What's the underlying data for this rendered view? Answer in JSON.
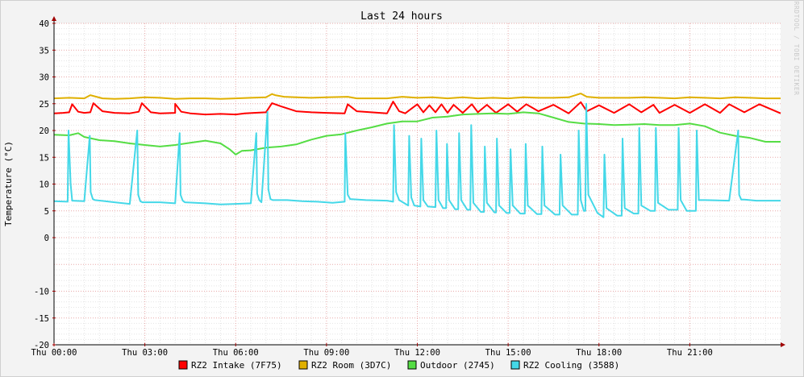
{
  "chart_data": {
    "type": "line",
    "title": "Last 24 hours",
    "ylabel": "Temperature (°C)",
    "xlabel": "",
    "watermark": "RRDTOOL / TOBI OETIKER",
    "ylim": [
      -20,
      40
    ],
    "y_ticks": [
      "40",
      "35",
      "30",
      "25",
      "20",
      "15",
      "10",
      "5",
      "0",
      "-10",
      "-15",
      "-20"
    ],
    "y_tick_values": [
      40,
      35,
      30,
      25,
      20,
      15,
      10,
      5,
      0,
      -10,
      -15,
      -20
    ],
    "x_unit": "hours since Thu 00:00",
    "xlim": [
      0,
      24
    ],
    "x_ticks": [
      "Thu 00:00",
      "Thu 03:00",
      "Thu 06:00",
      "Thu 09:00",
      "Thu 12:00",
      "Thu 15:00",
      "Thu 18:00",
      "Thu 21:00"
    ],
    "x_tick_values": [
      0,
      3,
      6,
      9,
      12,
      15,
      18,
      21
    ],
    "grid": true,
    "legend_position": "bottom",
    "series": [
      {
        "name": "RZ2 Intake (7F75)",
        "color": "#ff0000",
        "x": [
          0.0,
          0.3,
          0.5,
          0.6,
          0.8,
          1.0,
          1.2,
          1.3,
          1.6,
          2.0,
          2.5,
          2.8,
          2.9,
          3.2,
          3.5,
          4.0,
          4.0,
          4.2,
          4.5,
          5.0,
          5.5,
          6.0,
          6.3,
          6.6,
          7.0,
          7.2,
          7.5,
          8.0,
          8.5,
          9.0,
          9.6,
          9.7,
          10.0,
          11.0,
          11.2,
          11.4,
          11.6,
          12.0,
          12.2,
          12.4,
          12.6,
          12.8,
          13.0,
          13.2,
          13.5,
          13.8,
          14.0,
          14.3,
          14.6,
          15.0,
          15.3,
          15.6,
          16.0,
          16.5,
          17.0,
          17.4,
          17.6,
          18.0,
          18.5,
          19.0,
          19.4,
          19.8,
          20.0,
          20.5,
          21.0,
          21.5,
          22.0,
          22.3,
          22.8,
          23.3,
          24.0
        ],
        "y": [
          23.2,
          23.3,
          23.4,
          24.9,
          23.5,
          23.3,
          23.4,
          25.1,
          23.6,
          23.3,
          23.2,
          23.5,
          25.1,
          23.4,
          23.2,
          23.3,
          25.0,
          23.5,
          23.2,
          23.0,
          23.1,
          23.0,
          23.2,
          23.3,
          23.4,
          25.1,
          24.5,
          23.6,
          23.4,
          23.3,
          23.2,
          24.9,
          23.6,
          23.2,
          25.4,
          23.6,
          23.2,
          24.9,
          23.4,
          24.7,
          23.4,
          24.9,
          23.3,
          24.8,
          23.3,
          24.9,
          23.4,
          24.8,
          23.3,
          24.9,
          23.5,
          24.9,
          23.6,
          24.8,
          23.2,
          25.3,
          23.6,
          24.7,
          23.3,
          24.9,
          23.4,
          24.8,
          23.3,
          24.8,
          23.3,
          24.9,
          23.3,
          24.9,
          23.4,
          24.9,
          23.2
        ]
      },
      {
        "name": "RZ2 Room (3D7C)",
        "color": "#e0b000",
        "x": [
          0.0,
          0.5,
          1.0,
          1.2,
          1.6,
          2.0,
          2.5,
          3.0,
          3.5,
          4.0,
          4.5,
          5.0,
          5.5,
          6.0,
          6.5,
          7.0,
          7.2,
          7.3,
          7.6,
          8.0,
          8.5,
          9.0,
          9.7,
          10.0,
          11.0,
          11.5,
          12.0,
          12.5,
          13.0,
          13.5,
          14.0,
          14.5,
          15.0,
          15.5,
          16.0,
          16.5,
          17.0,
          17.4,
          17.6,
          18.0,
          18.5,
          19.0,
          19.5,
          20.0,
          20.5,
          21.0,
          21.5,
          22.0,
          22.5,
          23.0,
          23.5,
          24.0
        ],
        "y": [
          26.0,
          26.1,
          26.0,
          26.6,
          26.0,
          25.9,
          26.0,
          26.2,
          26.1,
          25.9,
          26.0,
          26.0,
          25.9,
          26.0,
          26.1,
          26.2,
          26.8,
          26.6,
          26.3,
          26.2,
          26.1,
          26.2,
          26.3,
          26.0,
          26.0,
          26.3,
          26.1,
          26.2,
          26.0,
          26.2,
          26.0,
          26.1,
          26.0,
          26.2,
          26.1,
          26.1,
          26.2,
          26.9,
          26.3,
          26.1,
          26.1,
          26.1,
          26.2,
          26.1,
          26.0,
          26.2,
          26.1,
          26.0,
          26.2,
          26.1,
          26.0,
          26.0
        ]
      },
      {
        "name": "Outdoor (2745)",
        "color": "#55dd44",
        "x": [
          0.0,
          0.5,
          0.8,
          1.0,
          1.5,
          2.0,
          2.5,
          3.0,
          3.5,
          4.0,
          4.5,
          5.0,
          5.5,
          5.8,
          6.0,
          6.2,
          6.5,
          6.8,
          7.0,
          7.5,
          8.0,
          8.5,
          9.0,
          9.5,
          10.0,
          10.5,
          11.0,
          11.5,
          12.0,
          12.5,
          13.0,
          13.5,
          14.0,
          14.5,
          15.0,
          15.5,
          16.0,
          16.5,
          17.0,
          17.5,
          18.0,
          18.5,
          19.0,
          19.5,
          20.0,
          20.5,
          21.0,
          21.5,
          22.0,
          22.5,
          23.0,
          23.5,
          24.0
        ],
        "y": [
          19.2,
          19.1,
          19.5,
          18.8,
          18.2,
          18.0,
          17.6,
          17.3,
          17.0,
          17.3,
          17.7,
          18.1,
          17.6,
          16.5,
          15.5,
          16.2,
          16.3,
          16.6,
          16.8,
          17.0,
          17.4,
          18.3,
          19.0,
          19.3,
          20.0,
          20.6,
          21.3,
          21.7,
          21.7,
          22.4,
          22.6,
          23.0,
          23.1,
          23.2,
          23.1,
          23.4,
          23.2,
          22.4,
          21.6,
          21.3,
          21.2,
          21.0,
          21.1,
          21.2,
          21.0,
          21.0,
          21.3,
          20.8,
          19.6,
          19.0,
          18.6,
          17.9,
          17.9
        ]
      },
      {
        "name": "RZ2 Cooling (3588)",
        "color": "#44d8e8",
        "x": [
          0.0,
          0.45,
          0.48,
          0.55,
          0.6,
          1.0,
          1.18,
          1.21,
          1.28,
          1.35,
          2.0,
          2.5,
          2.75,
          2.78,
          2.85,
          2.92,
          3.5,
          4.0,
          4.15,
          4.18,
          4.25,
          4.32,
          5.0,
          5.5,
          6.0,
          6.5,
          6.68,
          6.71,
          6.78,
          6.85,
          7.05,
          7.08,
          7.15,
          7.22,
          7.7,
          8.2,
          8.7,
          9.2,
          9.6,
          9.62,
          9.7,
          9.78,
          10.3,
          11.0,
          11.2,
          11.23,
          11.3,
          11.4,
          11.7,
          11.73,
          11.8,
          11.9,
          12.1,
          12.13,
          12.2,
          12.35,
          12.6,
          12.63,
          12.7,
          12.85,
          12.95,
          12.98,
          13.05,
          13.25,
          13.35,
          13.38,
          13.45,
          13.65,
          13.75,
          13.78,
          13.85,
          14.1,
          14.2,
          14.23,
          14.3,
          14.55,
          14.6,
          14.63,
          14.7,
          14.95,
          15.05,
          15.08,
          15.15,
          15.4,
          15.55,
          15.58,
          15.65,
          15.95,
          16.1,
          16.13,
          16.2,
          16.55,
          16.7,
          16.73,
          16.8,
          17.1,
          17.3,
          17.33,
          17.4,
          17.5,
          17.55,
          17.58,
          17.65,
          17.95,
          18.15,
          18.18,
          18.25,
          18.6,
          18.75,
          18.78,
          18.85,
          19.15,
          19.3,
          19.33,
          19.4,
          19.7,
          19.85,
          19.88,
          19.95,
          20.3,
          20.6,
          20.63,
          20.7,
          20.9,
          21.2,
          21.23,
          21.3,
          21.5,
          22.3,
          22.6,
          22.63,
          22.7,
          22.8,
          23.2,
          24.0
        ],
        "y": [
          6.8,
          6.7,
          20.0,
          10.0,
          6.9,
          6.8,
          19.0,
          8.5,
          7.2,
          7.0,
          6.6,
          6.3,
          20.0,
          8.0,
          6.8,
          6.6,
          6.6,
          6.4,
          19.5,
          8.0,
          6.9,
          6.6,
          6.4,
          6.2,
          6.3,
          6.4,
          19.5,
          8.2,
          7.0,
          6.6,
          23.5,
          9.0,
          7.2,
          7.0,
          7.0,
          6.8,
          6.7,
          6.5,
          6.7,
          19.5,
          8.0,
          7.2,
          7.0,
          6.9,
          6.7,
          21.0,
          8.5,
          7.0,
          6.0,
          19.0,
          7.5,
          6.0,
          5.8,
          18.5,
          7.0,
          5.8,
          5.7,
          20.0,
          7.0,
          5.5,
          5.5,
          17.5,
          7.0,
          5.3,
          5.3,
          19.5,
          7.0,
          5.2,
          5.2,
          21.0,
          6.5,
          4.8,
          4.8,
          17.0,
          6.5,
          4.7,
          4.7,
          18.5,
          6.0,
          4.6,
          4.6,
          16.5,
          6.0,
          4.5,
          4.5,
          17.5,
          6.0,
          4.4,
          4.4,
          17.0,
          6.0,
          4.3,
          4.3,
          15.5,
          6.0,
          4.3,
          4.3,
          20.0,
          7.0,
          5.0,
          5.0,
          25.0,
          8.0,
          4.6,
          3.8,
          15.5,
          5.5,
          4.1,
          4.1,
          18.5,
          5.5,
          4.5,
          4.5,
          20.5,
          6.0,
          5.0,
          5.0,
          20.5,
          6.5,
          5.2,
          5.2,
          20.5,
          7.0,
          5.0,
          5.0,
          20.0,
          7.0,
          7.0,
          6.9,
          20.0,
          8.0,
          7.1,
          7.1,
          6.9,
          6.9
        ]
      }
    ]
  }
}
